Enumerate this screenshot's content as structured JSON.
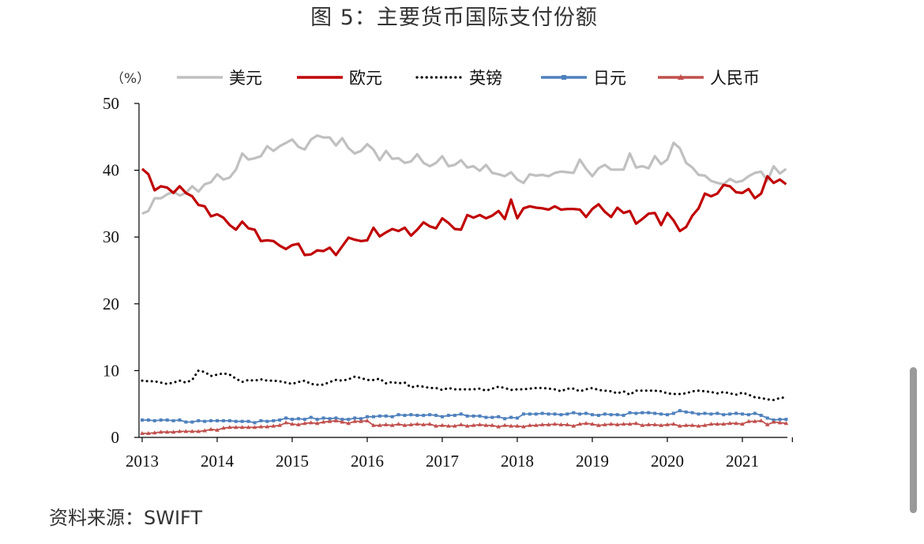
{
  "chart_data": {
    "type": "line",
    "title": "图 5：主要货币国际支付份额",
    "unit_label": "（%）",
    "source": "资料来源：SWIFT",
    "ylim": [
      0,
      50
    ],
    "yticks": [
      "0",
      "10",
      "20",
      "30",
      "40",
      "50"
    ],
    "xticks": [
      "2013",
      "2014",
      "2015",
      "2016",
      "2017",
      "2018",
      "2019",
      "2020",
      "2021"
    ],
    "x_start_year": 2013,
    "legend_position": "top",
    "grid": false,
    "series": [
      {
        "name": "美元",
        "color": "#c0c0c0",
        "style": "solid",
        "marker": "none",
        "values": [
          33.5,
          33.9,
          35.8,
          35.8,
          36.4,
          36.8,
          36.2,
          36.6,
          37.6,
          36.8,
          37.9,
          38.2,
          39.4,
          38.6,
          38.9,
          40.1,
          42.5,
          41.6,
          41.8,
          42.1,
          43.6,
          42.9,
          43.6,
          44.1,
          44.6,
          43.5,
          43.1,
          44.6,
          45.2,
          44.9,
          44.9,
          43.7,
          44.8,
          43.3,
          42.5,
          42.9,
          43.9,
          43.1,
          41.5,
          42.9,
          41.7,
          41.8,
          41.1,
          41.3,
          42.4,
          41.1,
          40.6,
          41.1,
          42.1,
          40.6,
          40.8,
          41.5,
          40.4,
          40.6,
          39.9,
          40.8,
          39.6,
          39.4,
          39.1,
          39.7,
          38.6,
          38.1,
          39.4,
          39.2,
          39.3,
          39.1,
          39.6,
          39.8,
          39.7,
          39.6,
          41.6,
          40.2,
          39.1,
          40.3,
          40.8,
          40.1,
          40.1,
          40.1,
          42.5,
          40.4,
          40.6,
          40.3,
          42.1,
          40.9,
          41.6,
          44.1,
          43.3,
          41.1,
          40.4,
          39.3,
          39.2,
          38.4,
          38.1,
          37.9,
          38.7,
          38.2,
          38.4,
          39.1,
          39.6,
          39.8,
          38.4,
          40.6,
          39.5,
          40.2
        ]
      },
      {
        "name": "欧元",
        "color": "#c00000",
        "style": "solid",
        "marker": "none",
        "values": [
          40.2,
          39.4,
          37.0,
          37.6,
          37.4,
          36.6,
          37.6,
          36.6,
          36.1,
          34.8,
          34.6,
          33.1,
          33.4,
          32.9,
          31.8,
          31.1,
          32.3,
          31.3,
          31.1,
          29.4,
          29.5,
          29.4,
          28.7,
          28.2,
          28.8,
          29.0,
          27.3,
          27.4,
          28.0,
          27.9,
          28.4,
          27.3,
          28.6,
          29.9,
          29.6,
          29.4,
          29.5,
          31.4,
          30.1,
          30.7,
          31.2,
          30.9,
          31.4,
          30.2,
          31.1,
          32.2,
          31.6,
          31.3,
          32.8,
          32.1,
          31.2,
          31.1,
          33.3,
          32.9,
          33.3,
          32.8,
          33.2,
          33.9,
          32.7,
          35.6,
          32.8,
          34.3,
          34.6,
          34.4,
          34.3,
          34.1,
          34.6,
          34.1,
          34.2,
          34.2,
          34.1,
          33.0,
          34.2,
          34.9,
          33.8,
          33.0,
          34.4,
          33.6,
          33.9,
          32.0,
          32.7,
          33.5,
          33.6,
          31.8,
          33.6,
          32.5,
          30.9,
          31.5,
          33.2,
          34.3,
          36.5,
          36.1,
          36.5,
          37.8,
          37.6,
          36.7,
          36.6,
          37.2,
          35.8,
          36.5,
          39.1,
          38.1,
          38.6,
          37.9
        ]
      },
      {
        "name": "英镑",
        "color": "#000000",
        "style": "dotted",
        "marker": "none",
        "values": [
          8.5,
          8.4,
          8.4,
          8.2,
          8.0,
          8.2,
          8.5,
          8.2,
          8.6,
          10.0,
          9.8,
          9.2,
          9.4,
          9.6,
          9.4,
          8.8,
          8.3,
          8.6,
          8.5,
          8.7,
          8.5,
          8.5,
          8.4,
          8.2,
          8.0,
          8.3,
          8.5,
          8.0,
          7.9,
          7.9,
          8.3,
          8.6,
          8.5,
          8.7,
          9.1,
          8.9,
          8.6,
          8.6,
          8.8,
          8.1,
          8.3,
          8.1,
          8.2,
          7.5,
          7.7,
          7.6,
          7.4,
          7.4,
          7.1,
          7.4,
          7.2,
          7.2,
          7.2,
          7.2,
          7.3,
          7.0,
          7.3,
          7.6,
          7.4,
          7.1,
          7.2,
          7.2,
          7.3,
          7.4,
          7.4,
          7.3,
          7.2,
          6.9,
          7.3,
          7.3,
          6.9,
          7.2,
          7.4,
          7.1,
          7.0,
          6.9,
          6.6,
          6.9,
          6.4,
          7.0,
          7.0,
          7.0,
          7.0,
          6.9,
          6.6,
          6.5,
          6.5,
          6.6,
          6.9,
          7.0,
          6.9,
          6.8,
          6.6,
          6.8,
          6.6,
          6.4,
          6.7,
          6.4,
          6.0,
          5.9,
          5.7,
          5.6,
          5.9,
          6.0
        ]
      },
      {
        "name": "日元",
        "color": "#4f81bd",
        "style": "solid",
        "marker": "square",
        "values": [
          2.6,
          2.6,
          2.5,
          2.6,
          2.6,
          2.5,
          2.6,
          2.3,
          2.3,
          2.5,
          2.4,
          2.5,
          2.5,
          2.5,
          2.5,
          2.4,
          2.4,
          2.4,
          2.2,
          2.5,
          2.4,
          2.5,
          2.6,
          2.9,
          2.7,
          2.8,
          2.7,
          3.0,
          2.7,
          2.9,
          2.8,
          2.9,
          2.7,
          2.7,
          2.9,
          2.8,
          3.1,
          3.1,
          3.2,
          3.2,
          3.1,
          3.4,
          3.3,
          3.4,
          3.3,
          3.3,
          3.4,
          3.3,
          3.1,
          3.3,
          3.3,
          3.5,
          3.2,
          3.2,
          3.2,
          3.0,
          3.0,
          3.1,
          2.8,
          3.0,
          2.9,
          3.5,
          3.5,
          3.5,
          3.6,
          3.5,
          3.5,
          3.4,
          3.5,
          3.7,
          3.5,
          3.6,
          3.4,
          3.3,
          3.5,
          3.4,
          3.4,
          3.3,
          3.7,
          3.6,
          3.7,
          3.7,
          3.6,
          3.5,
          3.4,
          3.6,
          4.0,
          3.8,
          3.7,
          3.5,
          3.6,
          3.5,
          3.6,
          3.4,
          3.5,
          3.6,
          3.5,
          3.4,
          3.6,
          3.3,
          2.9,
          2.6,
          2.7,
          2.7
        ]
      },
      {
        "name": "人民币",
        "color": "#c0504d",
        "style": "solid",
        "marker": "triangle",
        "values": [
          0.6,
          0.6,
          0.7,
          0.8,
          0.8,
          0.8,
          0.9,
          0.9,
          0.9,
          0.9,
          1.0,
          1.2,
          1.1,
          1.4,
          1.5,
          1.5,
          1.5,
          1.5,
          1.5,
          1.6,
          1.6,
          1.7,
          1.8,
          2.2,
          2.0,
          1.9,
          2.1,
          2.2,
          2.1,
          2.3,
          2.4,
          2.5,
          2.3,
          2.1,
          2.4,
          2.4,
          2.5,
          1.8,
          1.8,
          1.9,
          1.8,
          2.0,
          1.8,
          1.9,
          2.0,
          1.9,
          2.0,
          1.7,
          1.8,
          1.7,
          1.7,
          1.9,
          1.7,
          1.8,
          1.9,
          1.8,
          1.8,
          1.6,
          1.8,
          1.7,
          1.7,
          1.6,
          1.8,
          1.8,
          1.9,
          1.9,
          2.0,
          1.9,
          1.9,
          1.7,
          2.0,
          2.1,
          2.0,
          1.8,
          1.9,
          2.0,
          1.9,
          2.0,
          2.0,
          2.1,
          1.8,
          1.9,
          1.9,
          1.8,
          1.9,
          2.0,
          1.7,
          1.8,
          1.8,
          1.7,
          1.8,
          2.0,
          2.0,
          2.0,
          2.1,
          2.1,
          2.0,
          2.4,
          2.4,
          2.5,
          1.9,
          2.3,
          2.2,
          2.1
        ]
      }
    ]
  }
}
